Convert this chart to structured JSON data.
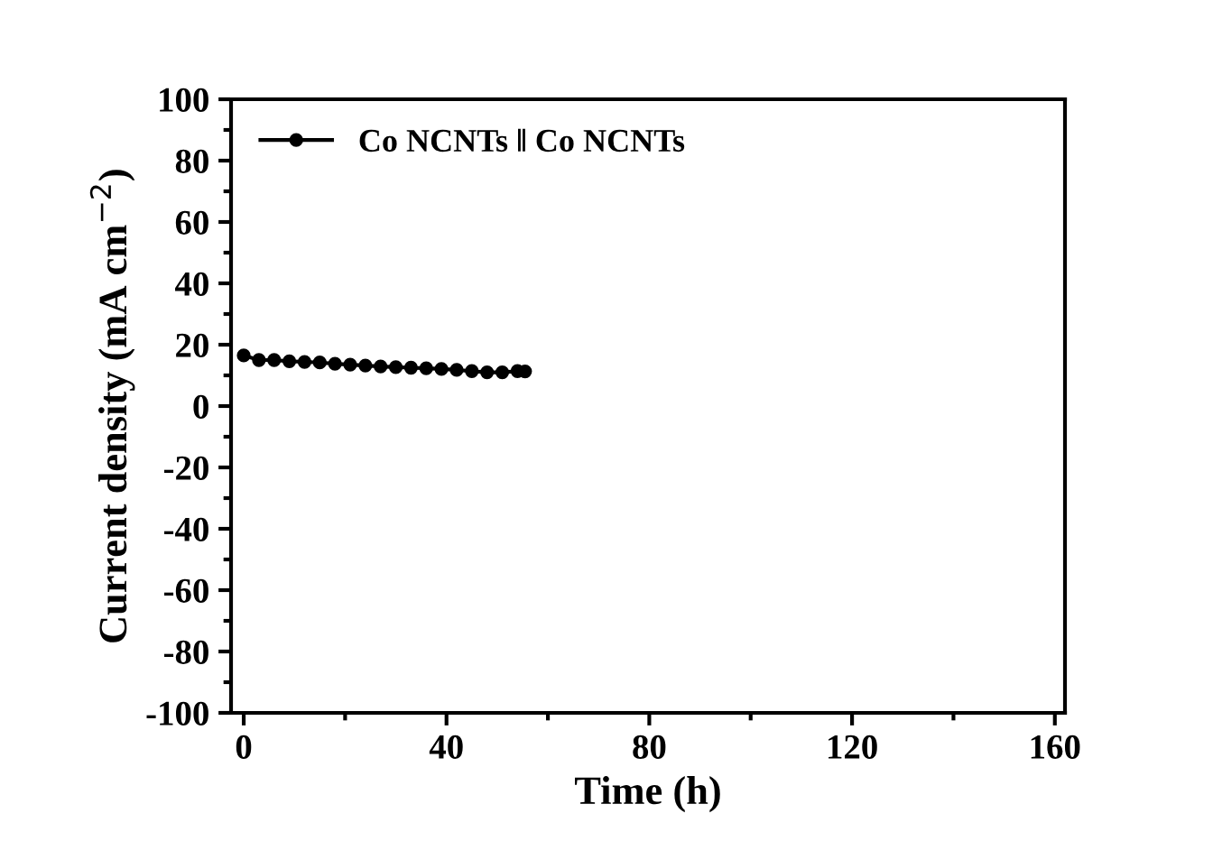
{
  "chart_data": {
    "type": "line",
    "xlabel": "Time (h)",
    "ylabel": "Current density (mA cm$^{−2}$)",
    "xlim": [
      -2.5,
      162
    ],
    "xticks": [
      0,
      40,
      80,
      120,
      160
    ],
    "ylim": [
      -100,
      100
    ],
    "yticks": [
      -100,
      -80,
      -60,
      -40,
      -20,
      0,
      20,
      40,
      60,
      80,
      100
    ],
    "series": [
      {
        "name": "Co NCNTs ‖ Co NCNTs",
        "color": "#000000",
        "x": [
          0,
          3,
          6,
          9,
          12,
          15,
          18,
          21,
          24,
          27,
          30,
          33,
          36,
          39,
          42,
          45,
          48,
          51,
          54,
          55.5
        ],
        "values": [
          16.5,
          15,
          15,
          14.6,
          14.4,
          14.2,
          13.8,
          13.5,
          13.2,
          12.9,
          12.7,
          12.5,
          12.3,
          12.1,
          11.8,
          11.4,
          11,
          11,
          11.4,
          11.3
        ]
      }
    ],
    "marker": "circle",
    "line_style": "solid",
    "legend": "top left",
    "grid": false
  }
}
